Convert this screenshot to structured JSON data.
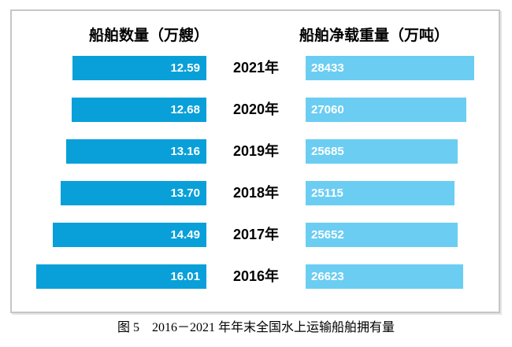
{
  "figure": {
    "left_header": "船舶数量（万艘）",
    "right_header": "船舶净载重量（万吨）",
    "caption": "图 5　2016－2021 年年末全国水上运输船舶拥有量"
  },
  "colors": {
    "left_bar": "#09a0d9",
    "right_bar": "#6bcdf2",
    "bar_label": "#ffffff",
    "year_label": "#000000",
    "frame_border": "#c6c6c6"
  },
  "chart_data": {
    "type": "bar",
    "layout": "horizontal-butterfly",
    "categories": [
      "2021年",
      "2020年",
      "2019年",
      "2018年",
      "2017年",
      "2016年"
    ],
    "series": [
      {
        "name": "船舶数量（万艘）",
        "side": "left",
        "values": [
          12.59,
          12.68,
          13.16,
          13.7,
          14.49,
          16.01
        ],
        "labels": [
          "12.59",
          "12.68",
          "13.16",
          "13.70",
          "14.49",
          "16.01"
        ]
      },
      {
        "name": "船舶净载重量（万吨）",
        "side": "right",
        "values": [
          28433,
          27060,
          25685,
          25115,
          25652,
          26623
        ],
        "labels": [
          "28433",
          "27060",
          "25685",
          "25115",
          "25652",
          "26623"
        ]
      }
    ],
    "title": "图 5　2016－2021 年年末全国水上运输船舶拥有量",
    "xlabel": "",
    "ylabel": "",
    "grid": false,
    "legend_position": "column-headers-top",
    "value_labels": "inside-bars",
    "axis_ranges": {
      "left_series": [
        0,
        16.01
      ],
      "right_series": [
        0,
        28433
      ]
    }
  }
}
